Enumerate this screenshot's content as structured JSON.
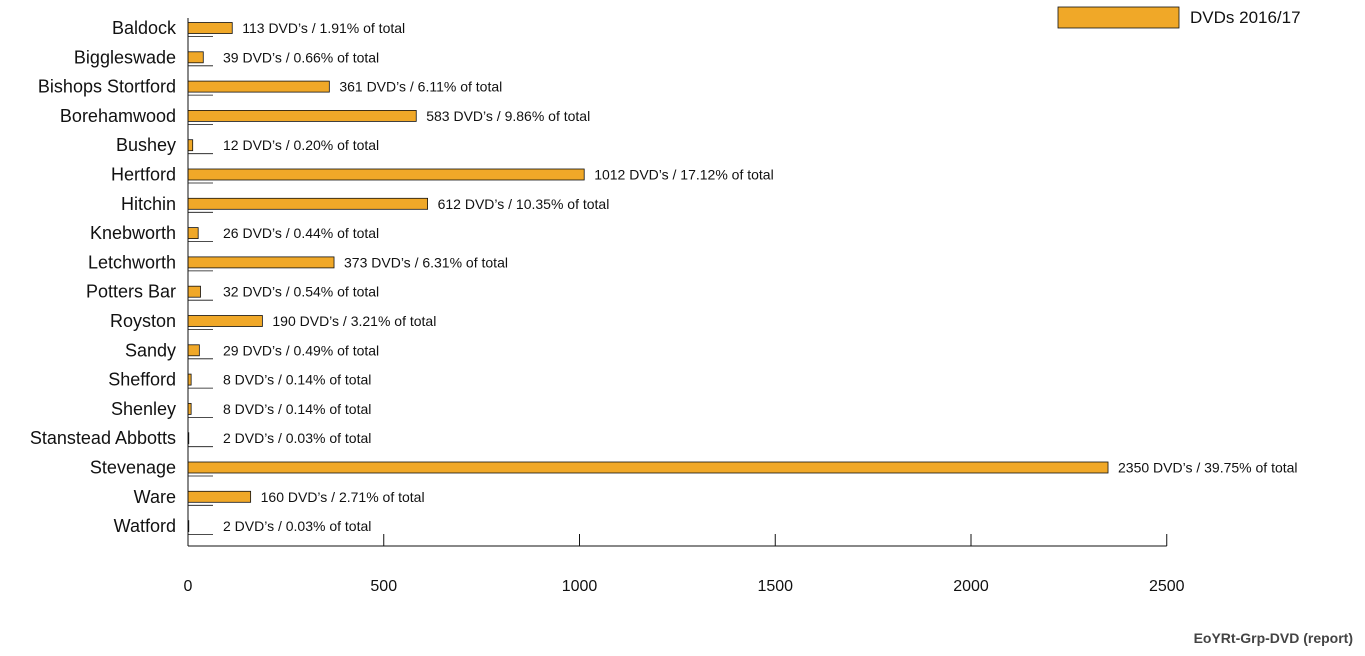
{
  "chart_data": {
    "type": "bar",
    "orientation": "horizontal",
    "categories": [
      "Baldock",
      "Biggleswade",
      "Bishops Stortford",
      "Borehamwood",
      "Bushey",
      "Hertford",
      "Hitchin",
      "Knebworth",
      "Letchworth",
      "Potters Bar",
      "Royston",
      "Sandy",
      "Shefford",
      "Shenley",
      "Stanstead Abbotts",
      "Stevenage",
      "Ware",
      "Watford"
    ],
    "series": [
      {
        "name": "DVDs 2016/17",
        "color": "#f0a828",
        "values": [
          113,
          39,
          361,
          583,
          12,
          1012,
          612,
          26,
          373,
          32,
          190,
          29,
          8,
          8,
          2,
          2350,
          160,
          2
        ]
      }
    ],
    "data_labels": [
      "113 DVD’s / 1.91% of total",
      "39 DVD’s / 0.66% of total",
      "361 DVD’s / 6.11% of total",
      "583 DVD’s / 9.86% of total",
      "12 DVD’s / 0.20% of total",
      "1012 DVD’s / 17.12% of total",
      "612 DVD’s / 10.35% of total",
      "26 DVD’s / 0.44% of total",
      "373 DVD’s / 6.31% of total",
      "32 DVD’s / 0.54% of total",
      "190 DVD’s / 3.21% of total",
      "29 DVD’s / 0.49% of total",
      "8 DVD’s / 0.14% of total",
      "8 DVD’s / 0.14% of total",
      "2 DVD’s / 0.03% of total",
      "2350 DVD’s / 39.75% of total",
      "160 DVD’s / 2.71% of total",
      "2 DVD’s / 0.03% of total"
    ],
    "x_ticks": [
      "0",
      "500",
      "1000",
      "1500",
      "2000",
      "2500"
    ],
    "xlim": [
      0,
      2500
    ],
    "title": "",
    "xlabel": "",
    "ylabel": "",
    "grid": false,
    "legend_position": "top-right"
  },
  "footer": "EoYRt-Grp-DVD (report)"
}
